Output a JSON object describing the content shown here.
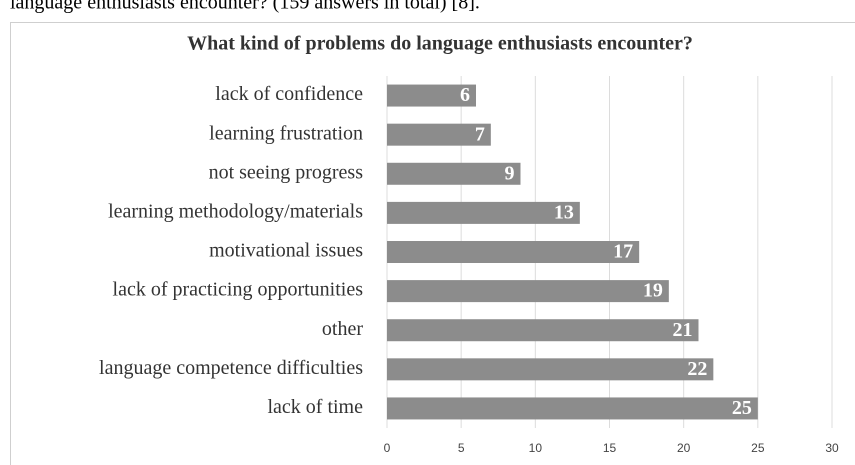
{
  "caption": "language enthusiasts encounter? (159 answers in total) [8].",
  "chart_data": {
    "type": "bar",
    "orientation": "horizontal",
    "title": "What kind of problems do language enthusiasts encounter?",
    "categories": [
      "lack of confidence",
      "learning frustration",
      "not seeing progress",
      "learning methodology/materials",
      "motivational issues",
      "lack of practicing opportunities",
      "other",
      "language competence difficulties",
      "lack of time"
    ],
    "values": [
      6,
      7,
      9,
      13,
      17,
      19,
      21,
      22,
      25
    ],
    "color": "#8c8c8c",
    "xlim": [
      0,
      30
    ],
    "xticks": [
      0,
      5,
      10,
      15,
      20,
      25,
      30
    ],
    "grid": true
  }
}
